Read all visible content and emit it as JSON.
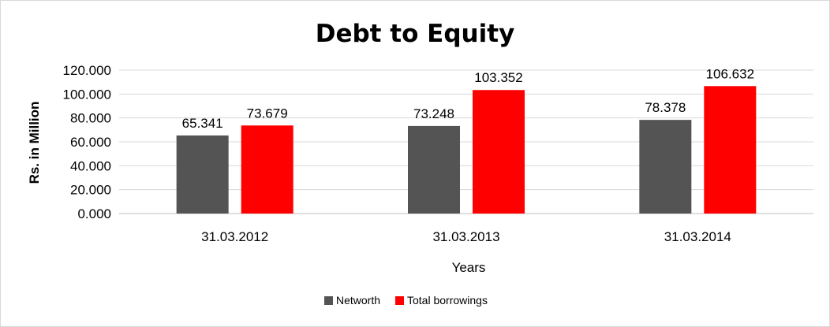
{
  "chart_data": {
    "type": "bar",
    "title": "Debt to Equity",
    "xlabel": "Years",
    "ylabel": "Rs. in Million",
    "categories": [
      "31.03.2012",
      "31.03.2013",
      "31.03.2014"
    ],
    "ylim": [
      0,
      120
    ],
    "yticks": [
      0,
      20,
      40,
      60,
      80,
      100,
      120
    ],
    "ytick_labels": [
      "0.000",
      "20.000",
      "40.000",
      "60.000",
      "80.000",
      "100.000",
      "120.000"
    ],
    "grid": true,
    "legend_position": "bottom",
    "series": [
      {
        "name": "Networth",
        "color": "#545454",
        "values": [
          65.341,
          73.248,
          78.378
        ],
        "labels": [
          "65.341",
          "73.248",
          "78.378"
        ]
      },
      {
        "name": "Total borrowings",
        "color": "#ff0000",
        "values": [
          73.679,
          103.352,
          106.632
        ],
        "labels": [
          "73.679",
          "103.352",
          "106.632"
        ]
      }
    ]
  }
}
